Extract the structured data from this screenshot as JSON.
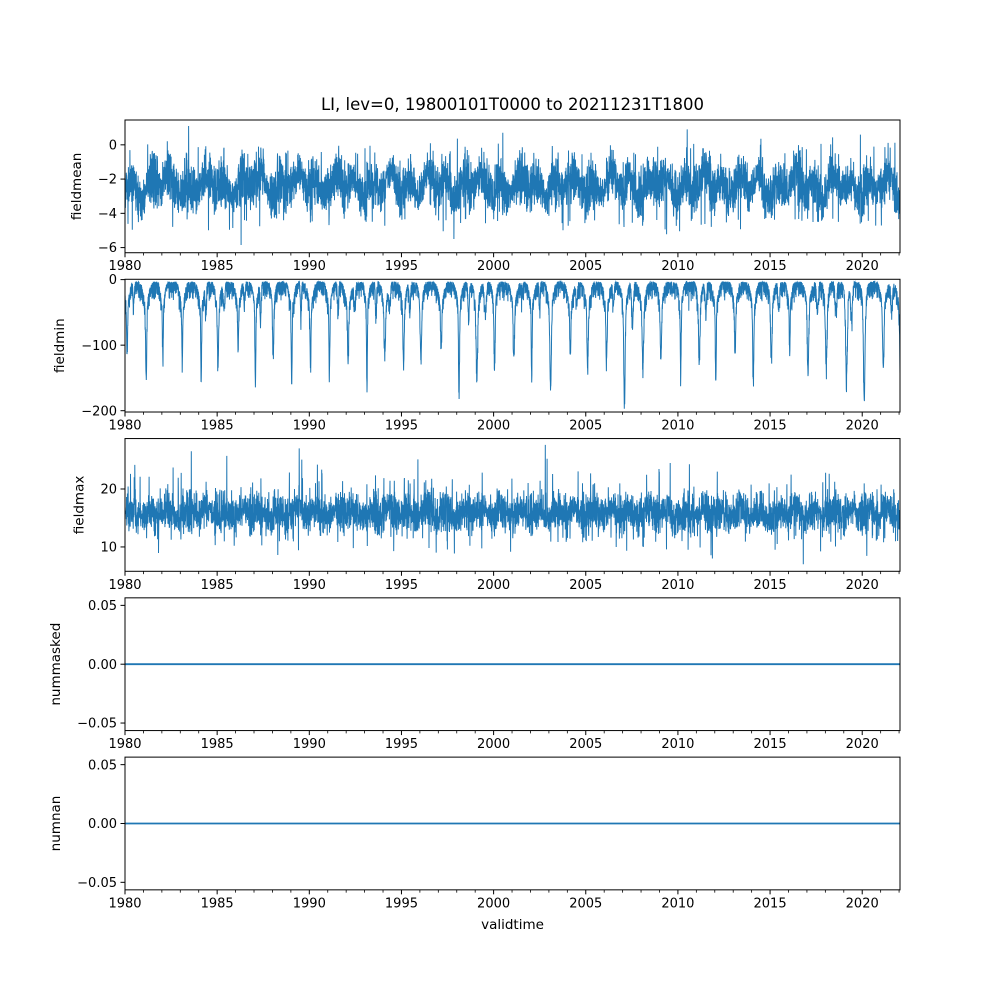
{
  "figure": {
    "background_color": "#ffffff",
    "text_color": "#000000"
  },
  "chart_data": {
    "type": "line",
    "title": "LI, lev=0, 19800101T0000 to 20211231T1800",
    "grid": false,
    "legend": null,
    "line_color": "#1f77b4",
    "x_axis": {
      "label": "validtime",
      "range": [
        1980,
        2022.05
      ],
      "major_ticks": [
        1980,
        1985,
        1990,
        1995,
        2000,
        2005,
        2010,
        2015,
        2020
      ],
      "minor_tick_step_years": 1,
      "start": "19800101T0000",
      "end": "20211231T1800"
    },
    "subplots": [
      {
        "ylabel": "fieldmean",
        "ylim": [
          -6.3,
          1.45
        ],
        "ytick_values": [
          0,
          -2,
          -4,
          -6
        ],
        "ytick_labels": [
          "0",
          "−2",
          "−4",
          "−6"
        ],
        "series": {
          "pattern": "noisy-band",
          "seed": 11,
          "center": -2.35,
          "seasonal_amplitude": 0.45,
          "noise_halfwidth": 1.5,
          "typical_band": [
            -4.5,
            -0.4
          ],
          "up_spikes": {
            "prob": 0.012,
            "from": -0.55,
            "span": 1.0
          },
          "down_spikes": {
            "prob": 0.01,
            "from": -4.3,
            "span": 1.2
          },
          "extremes": [
            [
              1983.45,
              1.1
            ],
            [
              1986.3,
              -5.85
            ],
            [
              1997.85,
              -5.5
            ],
            [
              2000.5,
              0.7
            ],
            [
              2010.5,
              0.9
            ],
            [
              2019.9,
              0.6
            ]
          ]
        }
      },
      {
        "ylabel": "fieldmin",
        "ylim": [
          -202,
          0.5
        ],
        "ytick_values": [
          0,
          -100,
          -200
        ],
        "ytick_labels": [
          "0",
          "−100",
          "−200"
        ],
        "series": {
          "pattern": "seasonal-spikes",
          "seed": 22,
          "baseline_band": [
            -3,
            -28
          ],
          "first_center": 1980.1,
          "yearly_minima": [
            -118,
            -152,
            -120,
            -132,
            -160,
            -138,
            -118,
            -165,
            -122,
            -170,
            -130,
            -146,
            -120,
            -163,
            -116,
            -136,
            -128,
            -110,
            -168,
            -150,
            -132,
            -124,
            -148,
            -172,
            -118,
            -142,
            -130,
            -192,
            -136,
            -126,
            -150,
            -135,
            -162,
            -118,
            -155,
            -128,
            -120,
            -148,
            -132,
            -158,
            -191,
            -142,
            -150
          ]
        }
      },
      {
        "ylabel": "fieldmax",
        "ylim": [
          5.8,
          28.7
        ],
        "ytick_values": [
          20,
          10
        ],
        "ytick_labels": [
          "20",
          "10"
        ],
        "series": {
          "pattern": "noisy-band",
          "seed": 33,
          "center": 15.8,
          "seasonal_amplitude": 0.6,
          "noise_halfwidth": 3.4,
          "typical_band": [
            11.5,
            20.5
          ],
          "up_spikes": {
            "prob": 0.03,
            "from": 19.0,
            "span": 7.0
          },
          "down_spikes": {
            "prob": 0.018,
            "from": 12.0,
            "span": 4.2
          },
          "extremes": [
            [
              1983.6,
              26.5
            ],
            [
              1989.45,
              27.0
            ],
            [
              2002.8,
              27.6
            ],
            [
              2016.8,
              7.0
            ]
          ]
        }
      },
      {
        "ylabel": "nummasked",
        "ylim": [
          -0.0564,
          0.0564
        ],
        "ytick_values": [
          0.05,
          0.0,
          -0.05
        ],
        "ytick_labels": [
          "0.05",
          "0.00",
          "−0.05"
        ],
        "series": {
          "pattern": "constant",
          "value": 0.0
        }
      },
      {
        "ylabel": "numnan",
        "ylim": [
          -0.0564,
          0.0564
        ],
        "ytick_values": [
          0.05,
          0.0,
          -0.05
        ],
        "ytick_labels": [
          "0.05",
          "0.00",
          "−0.05"
        ],
        "series": {
          "pattern": "constant",
          "value": 0.0
        }
      }
    ]
  }
}
